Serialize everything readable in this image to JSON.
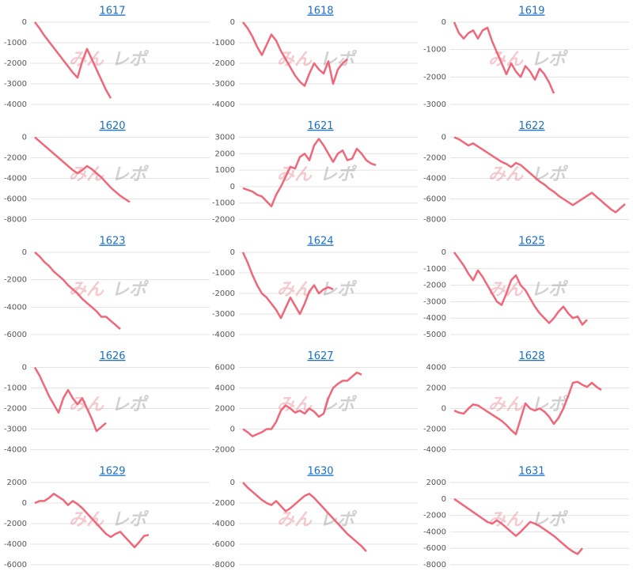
{
  "watermark": [
    "みん",
    "レポ"
  ],
  "chart_data": [
    {
      "type": "line",
      "title": "1617",
      "color": "#f0677a",
      "grid": true,
      "ylim": [
        -4000,
        0
      ],
      "yticks": [
        0,
        -1000,
        -2000,
        -3000,
        -4000
      ],
      "values": [
        0,
        -300,
        -650,
        -950,
        -1250,
        -1550,
        -1850,
        -2150,
        -2450,
        -2700,
        -1900,
        -1300,
        -1800,
        -2300,
        -2800,
        -3300,
        -3700
      ]
    },
    {
      "type": "line",
      "title": "1618",
      "color": "#f0677a",
      "grid": true,
      "ylim": [
        -4000,
        0
      ],
      "yticks": [
        0,
        -1000,
        -2000,
        -3000,
        -4000
      ],
      "values": [
        0,
        -300,
        -700,
        -1200,
        -1600,
        -1100,
        -600,
        -900,
        -1400,
        -1800,
        -2200,
        -2600,
        -2900,
        -3100,
        -2500,
        -2000,
        -2300,
        -2500,
        -1900,
        -3000,
        -2300,
        -2000,
        -1800
      ]
    },
    {
      "type": "line",
      "title": "1619",
      "color": "#f0677a",
      "grid": true,
      "ylim": [
        -3000,
        0
      ],
      "yticks": [
        0,
        -1000,
        -2000,
        -3000
      ],
      "values": [
        0,
        -400,
        -600,
        -400,
        -300,
        -600,
        -300,
        -200,
        -700,
        -1100,
        -1500,
        -1900,
        -1500,
        -1800,
        -2000,
        -1600,
        -1800,
        -2100,
        -1700,
        -1900,
        -2200,
        -2600
      ]
    },
    {
      "type": "line",
      "title": "1620",
      "color": "#f0677a",
      "grid": true,
      "ylim": [
        -8000,
        0
      ],
      "yticks": [
        0,
        -2000,
        -4000,
        -6000,
        -8000
      ],
      "values": [
        0,
        -400,
        -800,
        -1200,
        -1600,
        -2000,
        -2400,
        -2800,
        -3200,
        -3500,
        -3200,
        -2800,
        -3100,
        -3500,
        -3900,
        -4400,
        -4900,
        -5300,
        -5700,
        -6000,
        -6300
      ]
    },
    {
      "type": "line",
      "title": "1621",
      "color": "#f0677a",
      "grid": true,
      "ylim": [
        -2000,
        3000
      ],
      "yticks": [
        3000,
        2000,
        1000,
        0,
        -1000,
        -2000
      ],
      "values": [
        -100,
        -200,
        -300,
        -500,
        -600,
        -900,
        -1200,
        -500,
        0,
        600,
        1200,
        1100,
        1800,
        2000,
        1600,
        2500,
        2900,
        2500,
        2000,
        1500,
        2000,
        2200,
        1600,
        1700,
        2300,
        2000,
        1600,
        1400,
        1300
      ]
    },
    {
      "type": "line",
      "title": "1622",
      "color": "#f0677a",
      "grid": true,
      "ylim": [
        -8000,
        0
      ],
      "yticks": [
        0,
        -2000,
        -4000,
        -6000,
        -8000
      ],
      "values": [
        0,
        -200,
        -500,
        -800,
        -600,
        -900,
        -1200,
        -1500,
        -1800,
        -2100,
        -2400,
        -2600,
        -2900,
        -2500,
        -2700,
        -3100,
        -3500,
        -3900,
        -4300,
        -4600,
        -5000,
        -5300,
        -5700,
        -6000,
        -6300,
        -6600,
        -6300,
        -6000,
        -5700,
        -5400,
        -5800,
        -6200,
        -6600,
        -7000,
        -7300,
        -6900,
        -6500
      ]
    },
    {
      "type": "line",
      "title": "1623",
      "color": "#f0677a",
      "grid": true,
      "ylim": [
        -6000,
        0
      ],
      "yticks": [
        0,
        -2000,
        -4000,
        -6000
      ],
      "values": [
        0,
        -300,
        -700,
        -1000,
        -1400,
        -1700,
        -2000,
        -2400,
        -2700,
        -3000,
        -3400,
        -3700,
        -4000,
        -4300,
        -4700,
        -4700,
        -5000,
        -5300,
        -5600
      ]
    },
    {
      "type": "line",
      "title": "1624",
      "color": "#f0677a",
      "grid": true,
      "ylim": [
        -4000,
        0
      ],
      "yticks": [
        0,
        -1000,
        -2000,
        -3000,
        -4000
      ],
      "values": [
        0,
        -500,
        -1100,
        -1600,
        -2000,
        -2200,
        -2500,
        -2800,
        -3200,
        -2700,
        -2200,
        -2600,
        -3000,
        -2500,
        -1900,
        -1600,
        -2000,
        -1800,
        -1700,
        -1800
      ]
    },
    {
      "type": "line",
      "title": "1625",
      "color": "#f0677a",
      "grid": true,
      "ylim": [
        -5000,
        0
      ],
      "yticks": [
        0,
        -1000,
        -2000,
        -3000,
        -4000,
        -5000
      ],
      "values": [
        0,
        -400,
        -800,
        -1300,
        -1700,
        -1100,
        -1500,
        -2000,
        -2500,
        -3000,
        -3200,
        -2500,
        -1700,
        -1400,
        -2000,
        -2300,
        -2800,
        -3300,
        -3700,
        -4000,
        -4300,
        -4000,
        -3600,
        -3300,
        -3700,
        -4000,
        -3900,
        -4400,
        -4100
      ]
    },
    {
      "type": "line",
      "title": "1626",
      "color": "#f0677a",
      "grid": true,
      "ylim": [
        -4000,
        0
      ],
      "yticks": [
        0,
        -1000,
        -2000,
        -3000,
        -4000
      ],
      "values": [
        0,
        -400,
        -900,
        -1400,
        -1800,
        -2200,
        -1500,
        -1100,
        -1500,
        -1800,
        -1500,
        -2000,
        -2500,
        -3100,
        -2900,
        -2700
      ]
    },
    {
      "type": "line",
      "title": "1627",
      "color": "#f0677a",
      "grid": true,
      "ylim": [
        -2000,
        6000
      ],
      "yticks": [
        6000,
        4000,
        2000,
        0,
        -2000
      ],
      "values": [
        0,
        -300,
        -700,
        -500,
        -300,
        0,
        0,
        700,
        1800,
        2300,
        2000,
        1600,
        1800,
        1500,
        2000,
        1700,
        1200,
        1500,
        3000,
        4000,
        4400,
        4700,
        4700,
        5100,
        5500,
        5300
      ]
    },
    {
      "type": "line",
      "title": "1628",
      "color": "#f0677a",
      "grid": true,
      "ylim": [
        -4000,
        4000
      ],
      "yticks": [
        4000,
        2000,
        0,
        -2000,
        -4000
      ],
      "values": [
        -200,
        -400,
        -500,
        0,
        400,
        300,
        0,
        -300,
        -600,
        -900,
        -1200,
        -1600,
        -2100,
        -2500,
        -1000,
        500,
        0,
        -200,
        0,
        -300,
        -800,
        -1500,
        -900,
        0,
        1200,
        2500,
        2600,
        2300,
        2100,
        2500,
        2100,
        1800
      ]
    },
    {
      "type": "line",
      "title": "1629",
      "color": "#f0677a",
      "grid": true,
      "ylim": [
        -6000,
        2000
      ],
      "yticks": [
        2000,
        0,
        -2000,
        -4000,
        -6000
      ],
      "values": [
        0,
        200,
        200,
        500,
        900,
        600,
        300,
        -200,
        200,
        -100,
        -500,
        -1000,
        -1500,
        -2000,
        -2500,
        -3000,
        -3300,
        -3000,
        -2800,
        -3300,
        -3800,
        -4300,
        -3800,
        -3200,
        -3100
      ]
    },
    {
      "type": "line",
      "title": "1630",
      "color": "#f0677a",
      "grid": true,
      "ylim": [
        -8000,
        0
      ],
      "yticks": [
        0,
        -2000,
        -4000,
        -6000,
        -8000
      ],
      "values": [
        0,
        -500,
        -900,
        -1300,
        -1700,
        -2000,
        -2200,
        -1800,
        -2300,
        -2800,
        -2500,
        -2100,
        -1700,
        -1300,
        -1100,
        -1500,
        -2000,
        -2500,
        -3000,
        -3500,
        -4000,
        -4500,
        -5000,
        -5400,
        -5800,
        -6200,
        -6700
      ]
    },
    {
      "type": "line",
      "title": "1631",
      "color": "#f0677a",
      "grid": true,
      "ylim": [
        -8000,
        2000
      ],
      "yticks": [
        2000,
        0,
        -2000,
        -4000,
        -6000,
        -8000
      ],
      "values": [
        0,
        -400,
        -800,
        -1200,
        -1600,
        -2000,
        -2400,
        -2800,
        -3000,
        -2600,
        -3000,
        -3500,
        -4000,
        -4500,
        -4000,
        -3400,
        -2800,
        -3000,
        -3300,
        -3700,
        -4100,
        -4500,
        -5000,
        -5500,
        -6000,
        -6400,
        -6700,
        -6000
      ]
    }
  ]
}
